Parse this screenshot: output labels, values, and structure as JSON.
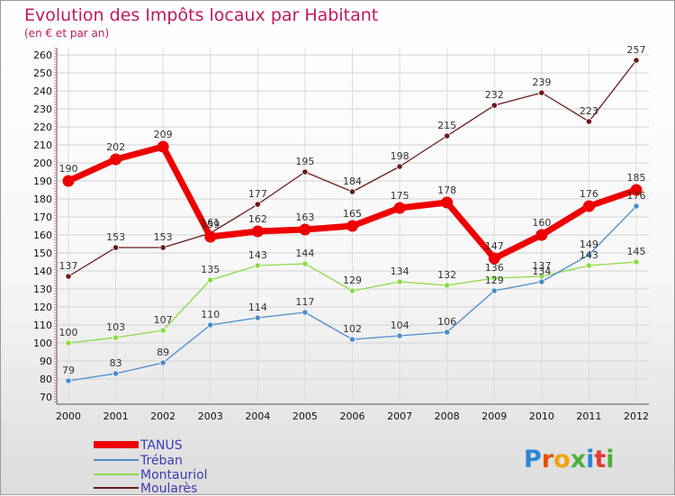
{
  "chart_data": {
    "type": "line",
    "title": "Evolution des Impôts locaux par Habitant",
    "subtitle": "(en € et par an)",
    "xlabel": "",
    "ylabel": "",
    "x": [
      "2000",
      "2001",
      "2002",
      "2003",
      "2004",
      "2005",
      "2006",
      "2007",
      "2008",
      "2009",
      "2010",
      "2011",
      "2012"
    ],
    "ylim": [
      70,
      260
    ],
    "yticks": [
      70,
      80,
      90,
      100,
      110,
      120,
      130,
      140,
      150,
      160,
      170,
      180,
      190,
      200,
      210,
      220,
      230,
      240,
      250,
      260
    ],
    "grid": true,
    "legend_position": "bottom-left",
    "series": [
      {
        "name": "TANUS",
        "color": "#ee0000",
        "values": [
          190,
          202,
          209,
          159,
          162,
          163,
          165,
          175,
          178,
          147,
          160,
          176,
          185
        ]
      },
      {
        "name": "Tréban",
        "color": "#4a8ccc",
        "values": [
          79,
          83,
          89,
          110,
          114,
          117,
          102,
          104,
          106,
          129,
          134,
          149,
          176
        ]
      },
      {
        "name": "Montauriol",
        "color": "#88dd44",
        "values": [
          100,
          103,
          107,
          135,
          143,
          144,
          129,
          134,
          132,
          136,
          137,
          143,
          145
        ]
      },
      {
        "name": "Moularès",
        "color": "#6b1a1a",
        "values": [
          137,
          153,
          153,
          161,
          177,
          195,
          184,
          198,
          215,
          232,
          239,
          223,
          257
        ]
      }
    ]
  },
  "brand": {
    "name": "Proxiti"
  }
}
